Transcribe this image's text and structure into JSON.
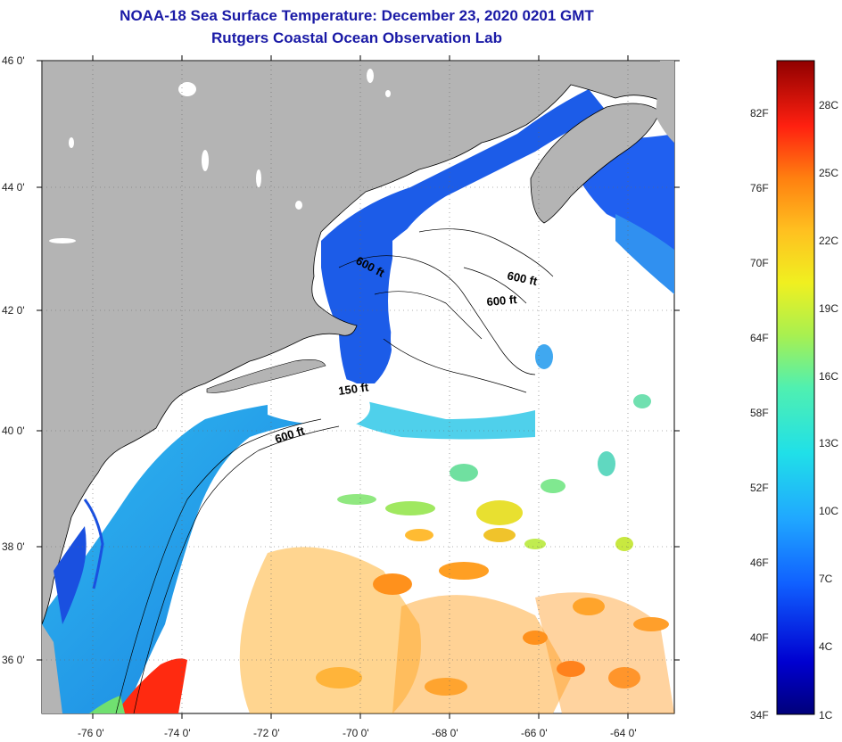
{
  "title": "NOAA-18 Sea Surface Temperature:  December 23, 2020 0201 GMT",
  "subtitle": "Rutgers Coastal Ocean Observation Lab",
  "lat_labels": [
    "46 0'",
    "44 0'",
    "42 0'",
    "40 0'",
    "38 0'",
    "36 0'"
  ],
  "lon_labels": [
    "-76 0'",
    "-74 0'",
    "-72 0'",
    "-70 0'",
    "-68 0'",
    "-66 0'",
    "-64 0'"
  ],
  "contour_labels": [
    "600 ft",
    "600 ft",
    "600 ft",
    "150 ft",
    "600 ft"
  ],
  "colorbar": {
    "fahrenheit": [
      "82F",
      "76F",
      "70F",
      "64F",
      "58F",
      "52F",
      "46F",
      "40F",
      "34F"
    ],
    "celsius": [
      "28C",
      "25C",
      "22C",
      "19C",
      "16C",
      "13C",
      "10C",
      "7C",
      "4C",
      "1C"
    ]
  },
  "colors": {
    "land": "#b4b4b4",
    "cloud": "#ffffff",
    "title": "#1a1aa6"
  }
}
